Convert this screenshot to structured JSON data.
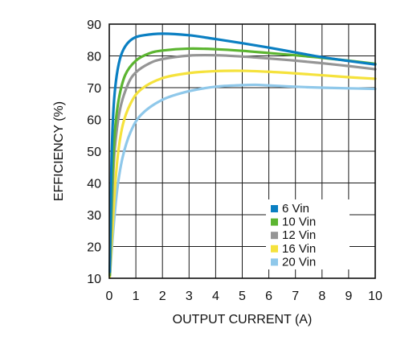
{
  "chart_data": {
    "type": "line",
    "title": "",
    "xlabel": "OUTPUT CURRENT (A)",
    "ylabel": "EFFICIENCY (%)",
    "xlim": [
      0,
      10
    ],
    "ylim": [
      10,
      90
    ],
    "x_ticks": [
      "0",
      "1",
      "2",
      "3",
      "4",
      "5",
      "6",
      "7",
      "8",
      "9",
      "10"
    ],
    "y_ticks": [
      "10",
      "20",
      "30",
      "40",
      "50",
      "60",
      "70",
      "80",
      "90"
    ],
    "grid": true,
    "legend_position": "bottom-right",
    "series": [
      {
        "name": "6 Vin",
        "color": "#0a7fc2",
        "points": [
          [
            0.02,
            12
          ],
          [
            0.08,
            45
          ],
          [
            0.15,
            62
          ],
          [
            0.25,
            72
          ],
          [
            0.4,
            79
          ],
          [
            0.6,
            83
          ],
          [
            0.9,
            85.5
          ],
          [
            1.3,
            86.5
          ],
          [
            2,
            87
          ],
          [
            3,
            86.5
          ],
          [
            4,
            85.3
          ],
          [
            5,
            84
          ],
          [
            6,
            82.6
          ],
          [
            7,
            81.1
          ],
          [
            8,
            79.6
          ],
          [
            9,
            78.4
          ],
          [
            10,
            77.3
          ]
        ]
      },
      {
        "name": "10 Vin",
        "color": "#5cb531",
        "points": [
          [
            0.02,
            11
          ],
          [
            0.1,
            38
          ],
          [
            0.2,
            55
          ],
          [
            0.35,
            66
          ],
          [
            0.6,
            74
          ],
          [
            1,
            78.5
          ],
          [
            1.5,
            80.8
          ],
          [
            2,
            81.7
          ],
          [
            3,
            82.3
          ],
          [
            4,
            82.1
          ],
          [
            5,
            81.6
          ],
          [
            6,
            80.9
          ],
          [
            7,
            80.2
          ],
          [
            8,
            79.4
          ],
          [
            9,
            78.5
          ],
          [
            10,
            77.5
          ]
        ]
      },
      {
        "name": "12 Vin",
        "color": "#959595",
        "points": [
          [
            0.02,
            11
          ],
          [
            0.1,
            33
          ],
          [
            0.2,
            50
          ],
          [
            0.4,
            63
          ],
          [
            0.7,
            71
          ],
          [
            1,
            74.8
          ],
          [
            1.5,
            77.6
          ],
          [
            2,
            79
          ],
          [
            3,
            80.1
          ],
          [
            4,
            80.2
          ],
          [
            5,
            79.8
          ],
          [
            6,
            79.2
          ],
          [
            7,
            78.5
          ],
          [
            8,
            77.7
          ],
          [
            9,
            76.8
          ],
          [
            10,
            75.8
          ]
        ]
      },
      {
        "name": "16 Vin",
        "color": "#f5e23c",
        "points": [
          [
            0.02,
            10.5
          ],
          [
            0.15,
            30
          ],
          [
            0.3,
            47
          ],
          [
            0.5,
            58
          ],
          [
            0.8,
            65
          ],
          [
            1.2,
            69.5
          ],
          [
            2,
            73
          ],
          [
            3,
            74.6
          ],
          [
            4,
            75.2
          ],
          [
            5,
            75.3
          ],
          [
            6,
            75
          ],
          [
            7,
            74.5
          ],
          [
            8,
            73.9
          ],
          [
            9,
            73.3
          ],
          [
            10,
            72.8
          ]
        ]
      },
      {
        "name": "20 Vin",
        "color": "#8fc8ea",
        "points": [
          [
            0.02,
            10.5
          ],
          [
            0.15,
            25
          ],
          [
            0.3,
            38
          ],
          [
            0.5,
            48
          ],
          [
            0.8,
            56
          ],
          [
            1.2,
            61.5
          ],
          [
            2,
            66.2
          ],
          [
            3,
            68.9
          ],
          [
            4,
            70.3
          ],
          [
            5,
            70.8
          ],
          [
            5.5,
            70.9
          ],
          [
            6,
            70.7
          ],
          [
            7,
            70.3
          ],
          [
            8,
            70
          ],
          [
            9,
            69.8
          ],
          [
            10,
            69.6
          ]
        ]
      }
    ]
  }
}
